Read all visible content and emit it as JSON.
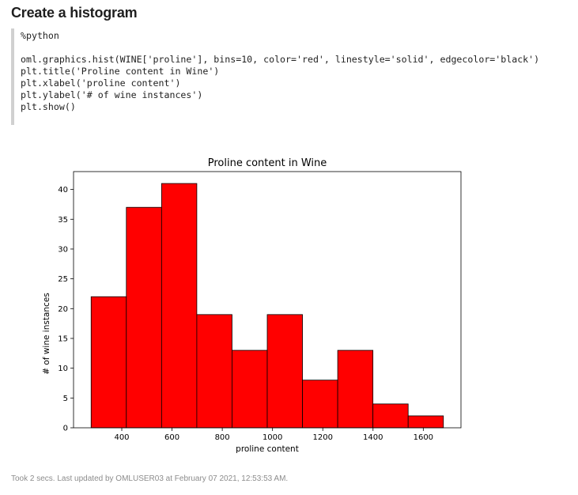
{
  "paragraph": {
    "title": "Create a histogram",
    "code_lines": [
      "%python",
      "",
      "oml.graphics.hist(WINE['proline'], bins=10, color='red', linestyle='solid', edgecolor='black')",
      "plt.title('Proline content in Wine')",
      "plt.xlabel('proline content')",
      "plt.ylabel('# of wine instances')",
      "plt.show()"
    ],
    "footer": "Took 2 secs. Last updated by OMLUSER03 at February 07 2021, 12:53:53 AM."
  },
  "chart_data": {
    "type": "bar",
    "title": "Proline content in Wine",
    "xlabel": "proline content",
    "ylabel": "# of wine instances",
    "bin_edges": [
      278,
      418.2,
      558.4,
      698.6,
      838.8,
      979,
      1119.2,
      1259.4,
      1399.6,
      1539.8,
      1680
    ],
    "values": [
      22,
      37,
      41,
      19,
      13,
      19,
      8,
      13,
      4,
      2
    ],
    "xlim": [
      208,
      1750
    ],
    "ylim": [
      0,
      43
    ],
    "xticks": [
      400,
      600,
      800,
      1000,
      1200,
      1400,
      1600
    ],
    "yticks": [
      0,
      5,
      10,
      15,
      20,
      25,
      30,
      35,
      40
    ],
    "bar_color": "#ff0000",
    "edge_color": "#000000",
    "grid": false
  }
}
